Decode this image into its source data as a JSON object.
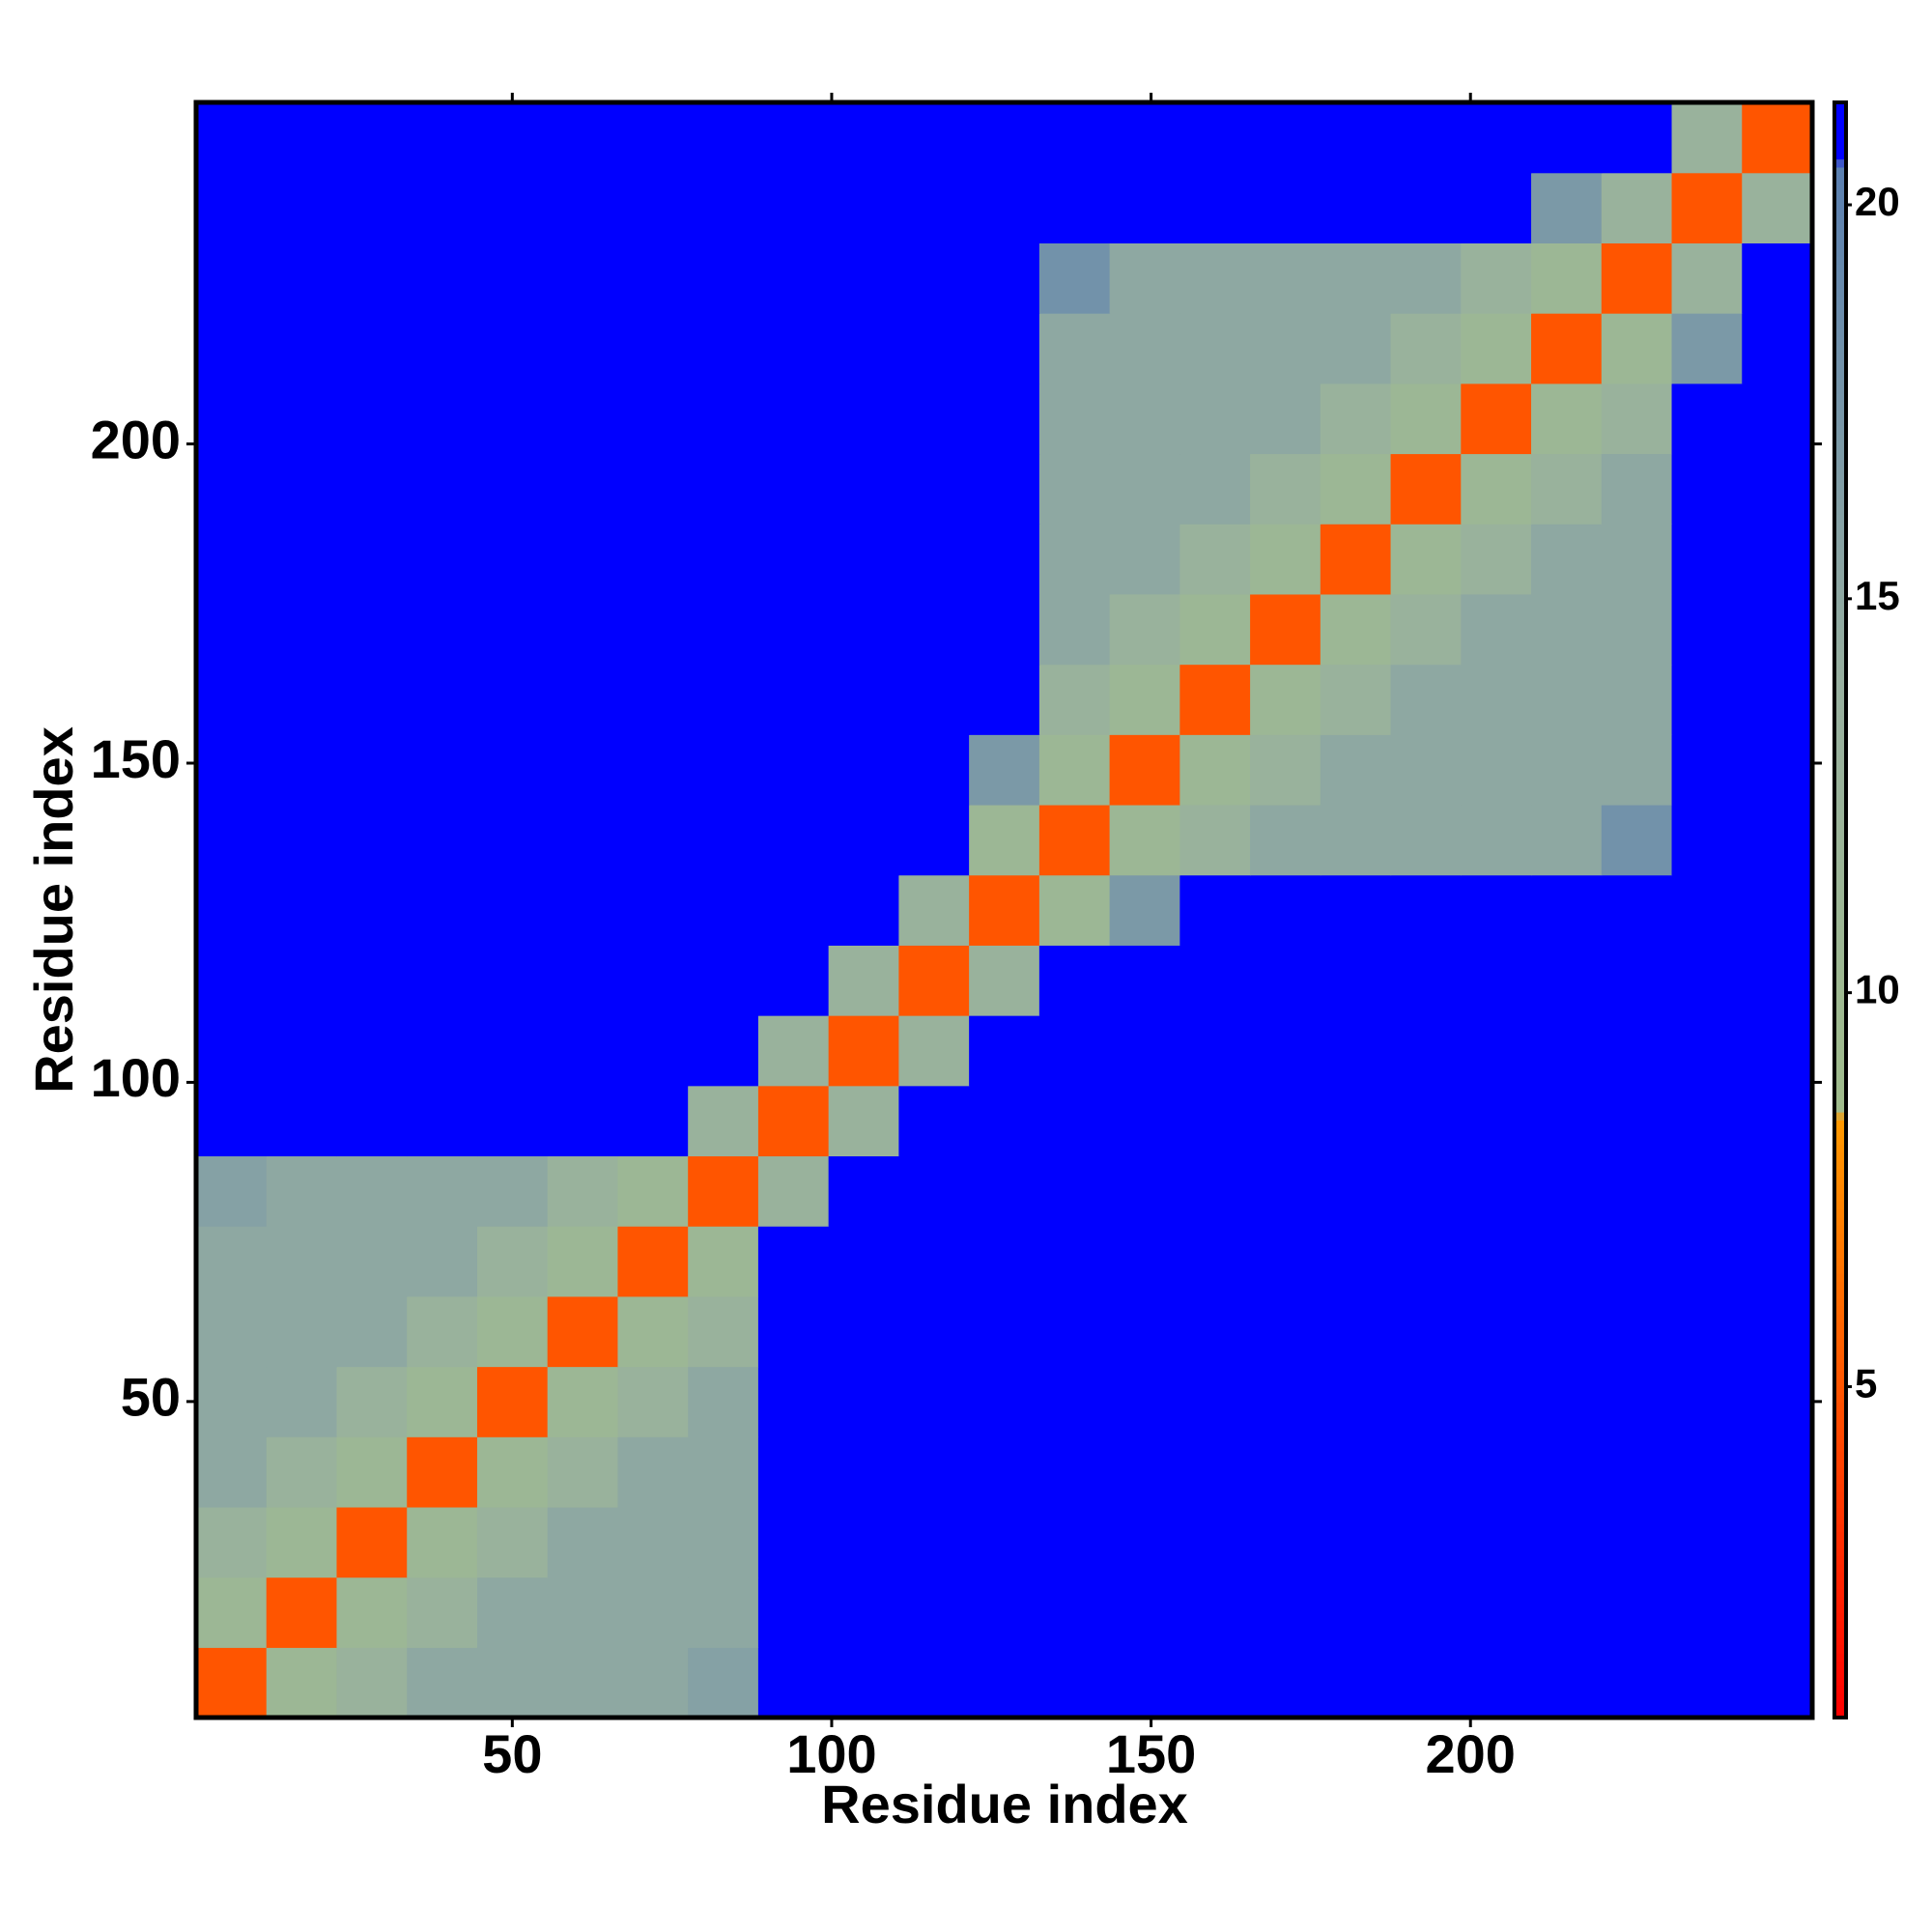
{
  "chart_data": {
    "type": "heatmap",
    "xlabel": "Residue index",
    "ylabel": "Residue index",
    "xbins": [
      0.5,
      11.5,
      22.5,
      33.5,
      44.5,
      55.5,
      66.5,
      77.5,
      88.5,
      99.5,
      110.5,
      121.5,
      132.5,
      143.5,
      154.5,
      165.5,
      176.5,
      187.5,
      198.5,
      209.5,
      220.5,
      231.5,
      242.5,
      253.5
    ],
    "ybins": [
      0.5,
      11.5,
      22.5,
      33.5,
      44.5,
      55.5,
      66.5,
      77.5,
      88.5,
      99.5,
      110.5,
      121.5,
      132.5,
      143.5,
      154.5,
      165.5,
      176.5,
      187.5,
      198.5,
      209.5,
      220.5,
      231.5,
      242.5,
      253.5
    ],
    "xlim": [
      0.5,
      253.5
    ],
    "ylim": [
      0.5,
      253.5
    ],
    "xticks": [
      50,
      100,
      150,
      200
    ],
    "yticks": [
      50,
      100,
      150,
      200
    ],
    "zlim": [
      0.8,
      21.3
    ],
    "zticks": [
      5,
      10,
      15,
      20
    ],
    "colorscale": [
      [
        0.8,
        "#ff0000"
      ],
      [
        8.4,
        "#ff9900"
      ],
      [
        8.5,
        "#a0bc8c"
      ],
      [
        14,
        "#98b0a0"
      ],
      [
        20.5,
        "#5a7fb0"
      ],
      [
        20.6,
        "#0000ff"
      ],
      [
        21.3,
        "#0000ff"
      ]
    ],
    "z": [
      [
        5,
        11,
        13,
        15,
        15,
        15,
        15,
        16,
        21,
        21,
        21,
        21,
        21,
        21,
        21,
        21,
        21,
        21,
        21,
        21,
        21,
        21,
        21
      ],
      [
        11,
        5,
        11,
        13,
        15,
        15,
        15,
        15,
        21,
        21,
        21,
        21,
        21,
        21,
        21,
        21,
        21,
        21,
        21,
        21,
        21,
        21,
        21
      ],
      [
        13,
        11,
        5,
        11,
        13,
        15,
        15,
        15,
        21,
        21,
        21,
        21,
        21,
        21,
        21,
        21,
        21,
        21,
        21,
        21,
        21,
        21,
        21
      ],
      [
        15,
        13,
        11,
        5,
        11,
        13,
        15,
        15,
        21,
        21,
        21,
        21,
        21,
        21,
        21,
        21,
        21,
        21,
        21,
        21,
        21,
        21,
        21
      ],
      [
        15,
        15,
        13,
        11,
        5,
        11,
        13,
        15,
        21,
        21,
        21,
        21,
        21,
        21,
        21,
        21,
        21,
        21,
        21,
        21,
        21,
        21,
        21
      ],
      [
        15,
        15,
        15,
        13,
        11,
        5,
        11,
        13,
        21,
        21,
        21,
        21,
        21,
        21,
        21,
        21,
        21,
        21,
        21,
        21,
        21,
        21,
        21
      ],
      [
        15,
        15,
        15,
        15,
        13,
        11,
        5,
        11,
        21,
        21,
        21,
        21,
        21,
        21,
        21,
        21,
        21,
        21,
        21,
        21,
        21,
        21,
        21
      ],
      [
        16,
        15,
        15,
        15,
        15,
        13,
        11,
        5,
        13,
        21,
        21,
        21,
        21,
        21,
        21,
        21,
        21,
        21,
        21,
        21,
        21,
        21,
        21
      ],
      [
        21,
        21,
        21,
        21,
        21,
        21,
        21,
        13,
        5,
        13,
        21,
        21,
        21,
        21,
        21,
        21,
        21,
        21,
        21,
        21,
        21,
        21,
        21
      ],
      [
        21,
        21,
        21,
        21,
        21,
        21,
        21,
        21,
        13,
        5,
        13,
        21,
        21,
        21,
        21,
        21,
        21,
        21,
        21,
        21,
        21,
        21,
        21
      ],
      [
        21,
        21,
        21,
        21,
        21,
        21,
        21,
        21,
        21,
        13,
        5,
        13,
        21,
        21,
        21,
        21,
        21,
        21,
        21,
        21,
        21,
        21,
        21
      ],
      [
        21,
        21,
        21,
        21,
        21,
        21,
        21,
        21,
        21,
        21,
        13,
        5,
        11,
        17,
        21,
        21,
        21,
        21,
        21,
        21,
        21,
        21,
        21
      ],
      [
        21,
        21,
        21,
        21,
        21,
        21,
        21,
        21,
        21,
        21,
        21,
        11,
        5,
        11,
        13,
        15,
        15,
        15,
        15,
        15,
        18,
        21,
        21
      ],
      [
        21,
        21,
        21,
        21,
        21,
        21,
        21,
        21,
        21,
        21,
        21,
        17,
        11,
        5,
        11,
        13,
        15,
        15,
        15,
        15,
        15,
        21,
        21
      ],
      [
        21,
        21,
        21,
        21,
        21,
        21,
        21,
        21,
        21,
        21,
        21,
        21,
        13,
        11,
        5,
        11,
        13,
        15,
        15,
        15,
        15,
        21,
        21
      ],
      [
        21,
        21,
        21,
        21,
        21,
        21,
        21,
        21,
        21,
        21,
        21,
        21,
        15,
        13,
        11,
        5,
        11,
        13,
        15,
        15,
        15,
        21,
        21
      ],
      [
        21,
        21,
        21,
        21,
        21,
        21,
        21,
        21,
        21,
        21,
        21,
        21,
        15,
        15,
        13,
        11,
        5,
        11,
        13,
        15,
        15,
        21,
        21
      ],
      [
        21,
        21,
        21,
        21,
        21,
        21,
        21,
        21,
        21,
        21,
        21,
        21,
        15,
        15,
        15,
        13,
        11,
        5,
        11,
        13,
        15,
        21,
        21
      ],
      [
        21,
        21,
        21,
        21,
        21,
        21,
        21,
        21,
        21,
        21,
        21,
        21,
        15,
        15,
        15,
        15,
        13,
        11,
        5,
        11,
        13,
        21,
        21
      ],
      [
        21,
        21,
        21,
        21,
        21,
        21,
        21,
        21,
        21,
        21,
        21,
        21,
        15,
        15,
        15,
        15,
        15,
        13,
        11,
        5,
        11,
        17,
        21
      ],
      [
        21,
        21,
        21,
        21,
        21,
        21,
        21,
        21,
        21,
        21,
        21,
        21,
        18,
        15,
        15,
        15,
        15,
        15,
        13,
        11,
        5,
        13,
        21
      ],
      [
        21,
        21,
        21,
        21,
        21,
        21,
        21,
        21,
        21,
        21,
        21,
        21,
        21,
        21,
        21,
        21,
        21,
        21,
        21,
        17,
        13,
        5,
        13
      ],
      [
        21,
        21,
        21,
        21,
        21,
        21,
        21,
        21,
        21,
        21,
        21,
        21,
        21,
        21,
        21,
        21,
        21,
        21,
        21,
        21,
        21,
        13,
        5
      ]
    ]
  }
}
